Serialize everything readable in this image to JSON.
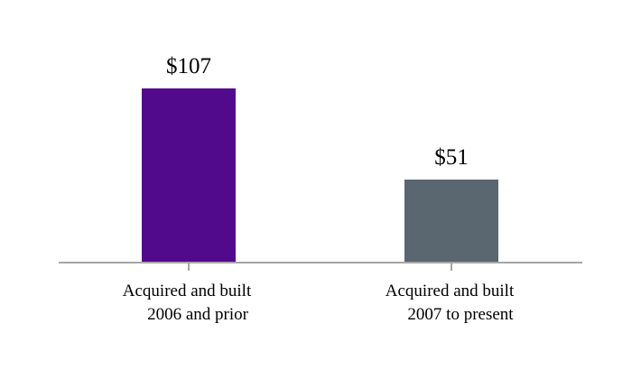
{
  "chart_data": {
    "type": "bar",
    "categories": [
      [
        "Acquired and built",
        "2006 and prior"
      ],
      [
        "Acquired and built",
        "2007 to present"
      ]
    ],
    "values": [
      107,
      51
    ],
    "value_labels": [
      "$107",
      "$51"
    ],
    "bar_colors": [
      "#520A8C",
      "#5A6670"
    ],
    "axis_color": "#A6A6A6",
    "title": "",
    "xlabel": "",
    "ylabel": "",
    "ylim": [
      0,
      107
    ],
    "grid": false,
    "legend": "none"
  }
}
